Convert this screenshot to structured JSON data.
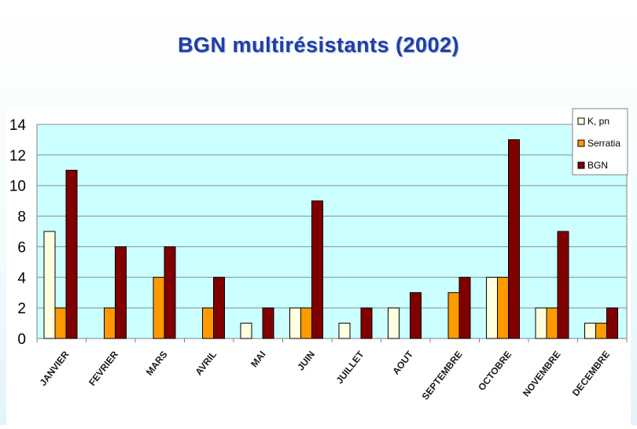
{
  "slide": {
    "title": "BGN multirésistants (2002)"
  },
  "chart_data": {
    "type": "bar",
    "title": "",
    "xlabel": "",
    "ylabel": "",
    "ylim": [
      0,
      14
    ],
    "yticks": [
      0,
      2,
      4,
      6,
      8,
      10,
      12,
      14
    ],
    "grid": true,
    "legend_position": "top-right",
    "categories": [
      "JANVIER",
      "FEVRIER",
      "MARS",
      "AVRIL",
      "MAI",
      "JUIN",
      "JUILLET",
      "AOUT",
      "SEPTEMBRE",
      "OCTOBRE",
      "NOVEMBRE",
      "DECEMBRE"
    ],
    "series": [
      {
        "name": "K, pn",
        "color": "#ffffe0",
        "values": [
          7,
          0,
          0,
          0,
          1,
          2,
          1,
          2,
          0,
          4,
          2,
          1
        ]
      },
      {
        "name": "Serratia",
        "color": "#ff9900",
        "values": [
          2,
          2,
          4,
          2,
          0,
          2,
          0,
          0,
          3,
          4,
          2,
          1
        ]
      },
      {
        "name": "BGN",
        "color": "#800000",
        "values": [
          11,
          6,
          6,
          4,
          2,
          9,
          2,
          3,
          4,
          13,
          7,
          2
        ]
      }
    ],
    "plot_background": "#ccffff"
  }
}
